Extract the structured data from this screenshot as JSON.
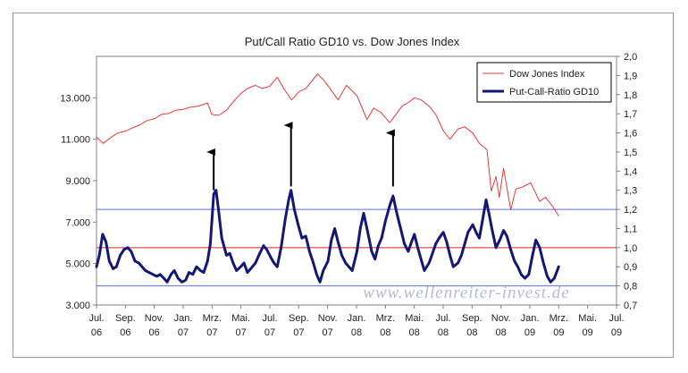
{
  "chart_data": {
    "type": "line",
    "title": "Put/Call Ratio GD10 vs. Dow Jones Index",
    "watermark": "www.wellenreiter-invest.de",
    "x_ticks": [
      [
        "Jul.",
        "06"
      ],
      [
        "Sep.",
        "06"
      ],
      [
        "Nov.",
        "06"
      ],
      [
        "Jan.",
        "07"
      ],
      [
        "Mrz.",
        "07"
      ],
      [
        "Mai.",
        "07"
      ],
      [
        "Jul.",
        "07"
      ],
      [
        "Sep.",
        "07"
      ],
      [
        "Nov.",
        "07"
      ],
      [
        "Jan.",
        "08"
      ],
      [
        "Mrz.",
        "08"
      ],
      [
        "Mai.",
        "08"
      ],
      [
        "Jul.",
        "08"
      ],
      [
        "Sep.",
        "08"
      ],
      [
        "Nov.",
        "08"
      ],
      [
        "Jan.",
        "09"
      ],
      [
        "Mrz.",
        "09"
      ],
      [
        "Mai.",
        "09"
      ],
      [
        "Jul.",
        "09"
      ]
    ],
    "x_range": [
      "2006-07-01",
      "2009-07-01"
    ],
    "y_left": {
      "ticks": [
        "3.000",
        "5.000",
        "7.000",
        "9.000",
        "11.000",
        "13.000"
      ],
      "min": 3000,
      "max": 15000
    },
    "y_right": {
      "ticks": [
        "0,7",
        "0,8",
        "0,9",
        "1,0",
        "1,1",
        "1,2",
        "1,3",
        "1,4",
        "1,5",
        "1,6",
        "1,7",
        "1,8",
        "1,9",
        "2,0"
      ],
      "min": 0.7,
      "max": 2.0
    },
    "legend": {
      "position": "top-right",
      "entries": [
        "Dow Jones Index",
        "Put-Call-Ratio GD10"
      ]
    },
    "reference_lines": [
      {
        "axis": "right",
        "value": 0.8,
        "color": "#5a6cff"
      },
      {
        "axis": "right",
        "value": 1.2,
        "color": "#5a6cff"
      },
      {
        "axis": "right",
        "value": 1.0,
        "color": "#d42020"
      }
    ],
    "arrows": [
      {
        "date": "2007-03-05",
        "from": 1.3,
        "to": 1.5
      },
      {
        "date": "2007-08-15",
        "from": 1.32,
        "to": 1.64
      },
      {
        "date": "2008-03-17",
        "from": 1.32,
        "to": 1.6
      }
    ],
    "series": [
      {
        "name": "Dow Jones Index",
        "axis": "left",
        "color": "#e83a3a",
        "points": [
          [
            "2006-07-01",
            11100
          ],
          [
            "2006-07-15",
            10800
          ],
          [
            "2006-08-01",
            11100
          ],
          [
            "2006-08-15",
            11300
          ],
          [
            "2006-09-01",
            11400
          ],
          [
            "2006-09-15",
            11550
          ],
          [
            "2006-10-01",
            11700
          ],
          [
            "2006-10-15",
            11900
          ],
          [
            "2006-11-01",
            12000
          ],
          [
            "2006-11-15",
            12200
          ],
          [
            "2006-12-01",
            12250
          ],
          [
            "2006-12-15",
            12400
          ],
          [
            "2007-01-01",
            12450
          ],
          [
            "2007-01-15",
            12550
          ],
          [
            "2007-02-01",
            12600
          ],
          [
            "2007-02-20",
            12750
          ],
          [
            "2007-03-01",
            12200
          ],
          [
            "2007-03-15",
            12150
          ],
          [
            "2007-04-01",
            12400
          ],
          [
            "2007-04-15",
            12800
          ],
          [
            "2007-05-01",
            13200
          ],
          [
            "2007-05-15",
            13450
          ],
          [
            "2007-06-01",
            13600
          ],
          [
            "2007-06-15",
            13450
          ],
          [
            "2007-07-01",
            13550
          ],
          [
            "2007-07-17",
            14000
          ],
          [
            "2007-08-01",
            13400
          ],
          [
            "2007-08-16",
            12900
          ],
          [
            "2007-09-01",
            13300
          ],
          [
            "2007-09-15",
            13450
          ],
          [
            "2007-10-01",
            13900
          ],
          [
            "2007-10-10",
            14150
          ],
          [
            "2007-10-25",
            13800
          ],
          [
            "2007-11-10",
            13300
          ],
          [
            "2007-11-22",
            12900
          ],
          [
            "2007-12-10",
            13600
          ],
          [
            "2008-01-01",
            13100
          ],
          [
            "2008-01-22",
            11950
          ],
          [
            "2008-02-05",
            12500
          ],
          [
            "2008-02-20",
            12300
          ],
          [
            "2008-03-10",
            11800
          ],
          [
            "2008-03-20",
            12100
          ],
          [
            "2008-04-05",
            12600
          ],
          [
            "2008-04-20",
            12800
          ],
          [
            "2008-05-01",
            13000
          ],
          [
            "2008-05-15",
            12900
          ],
          [
            "2008-06-01",
            12600
          ],
          [
            "2008-06-15",
            12200
          ],
          [
            "2008-07-01",
            11400
          ],
          [
            "2008-07-15",
            11000
          ],
          [
            "2008-08-01",
            11500
          ],
          [
            "2008-08-15",
            11600
          ],
          [
            "2008-09-01",
            11300
          ],
          [
            "2008-09-15",
            10800
          ],
          [
            "2008-10-01",
            10500
          ],
          [
            "2008-10-10",
            8500
          ],
          [
            "2008-10-20",
            9200
          ],
          [
            "2008-10-27",
            8200
          ],
          [
            "2008-11-05",
            9600
          ],
          [
            "2008-11-20",
            7600
          ],
          [
            "2008-12-01",
            8600
          ],
          [
            "2008-12-15",
            8700
          ],
          [
            "2009-01-01",
            8900
          ],
          [
            "2009-01-20",
            8000
          ],
          [
            "2009-02-01",
            8200
          ],
          [
            "2009-02-15",
            7800
          ],
          [
            "2009-03-01",
            7300
          ]
        ]
      },
      {
        "name": "Put-Call-Ratio GD10",
        "axis": "right",
        "color": "#131775",
        "points": [
          [
            "2006-07-01",
            0.9
          ],
          [
            "2006-07-07",
            0.96
          ],
          [
            "2006-07-14",
            1.07
          ],
          [
            "2006-07-21",
            1.03
          ],
          [
            "2006-07-28",
            0.93
          ],
          [
            "2006-08-05",
            0.89
          ],
          [
            "2006-08-12",
            0.9
          ],
          [
            "2006-08-20",
            0.96
          ],
          [
            "2006-08-28",
            0.99
          ],
          [
            "2006-09-05",
            1.0
          ],
          [
            "2006-09-12",
            0.98
          ],
          [
            "2006-09-20",
            0.93
          ],
          [
            "2006-09-28",
            0.92
          ],
          [
            "2006-10-05",
            0.9
          ],
          [
            "2006-10-12",
            0.88
          ],
          [
            "2006-10-20",
            0.87
          ],
          [
            "2006-10-28",
            0.86
          ],
          [
            "2006-11-05",
            0.85
          ],
          [
            "2006-11-12",
            0.86
          ],
          [
            "2006-11-20",
            0.84
          ],
          [
            "2006-11-27",
            0.82
          ],
          [
            "2006-12-05",
            0.86
          ],
          [
            "2006-12-12",
            0.88
          ],
          [
            "2006-12-20",
            0.84
          ],
          [
            "2006-12-28",
            0.82
          ],
          [
            "2007-01-05",
            0.83
          ],
          [
            "2007-01-12",
            0.87
          ],
          [
            "2007-01-20",
            0.86
          ],
          [
            "2007-01-28",
            0.9
          ],
          [
            "2007-02-05",
            0.88
          ],
          [
            "2007-02-12",
            0.87
          ],
          [
            "2007-02-20",
            0.93
          ],
          [
            "2007-02-26",
            1.02
          ],
          [
            "2007-03-05",
            1.28
          ],
          [
            "2007-03-10",
            1.3
          ],
          [
            "2007-03-15",
            1.2
          ],
          [
            "2007-03-22",
            1.05
          ],
          [
            "2007-04-01",
            0.96
          ],
          [
            "2007-04-08",
            0.97
          ],
          [
            "2007-04-15",
            0.92
          ],
          [
            "2007-04-22",
            0.88
          ],
          [
            "2007-05-01",
            0.9
          ],
          [
            "2007-05-08",
            0.92
          ],
          [
            "2007-05-15",
            0.87
          ],
          [
            "2007-05-22",
            0.89
          ],
          [
            "2007-06-01",
            0.92
          ],
          [
            "2007-06-10",
            0.97
          ],
          [
            "2007-06-18",
            1.01
          ],
          [
            "2007-06-25",
            0.99
          ],
          [
            "2007-07-03",
            0.95
          ],
          [
            "2007-07-10",
            0.92
          ],
          [
            "2007-07-17",
            0.9
          ],
          [
            "2007-07-25",
            1.0
          ],
          [
            "2007-08-03",
            1.15
          ],
          [
            "2007-08-10",
            1.25
          ],
          [
            "2007-08-15",
            1.3
          ],
          [
            "2007-08-22",
            1.2
          ],
          [
            "2007-08-30",
            1.12
          ],
          [
            "2007-09-07",
            1.05
          ],
          [
            "2007-09-15",
            1.06
          ],
          [
            "2007-09-23",
            0.98
          ],
          [
            "2007-10-01",
            0.92
          ],
          [
            "2007-10-08",
            0.86
          ],
          [
            "2007-10-15",
            0.82
          ],
          [
            "2007-10-22",
            0.88
          ],
          [
            "2007-11-01",
            0.93
          ],
          [
            "2007-11-08",
            1.04
          ],
          [
            "2007-11-15",
            1.1
          ],
          [
            "2007-11-22",
            1.03
          ],
          [
            "2007-11-30",
            0.96
          ],
          [
            "2007-12-08",
            0.92
          ],
          [
            "2007-12-15",
            0.9
          ],
          [
            "2007-12-22",
            0.88
          ],
          [
            "2008-01-01",
            0.98
          ],
          [
            "2008-01-08",
            1.1
          ],
          [
            "2008-01-15",
            1.18
          ],
          [
            "2008-01-22",
            1.1
          ],
          [
            "2008-02-01",
            0.98
          ],
          [
            "2008-02-08",
            0.94
          ],
          [
            "2008-02-15",
            1.01
          ],
          [
            "2008-02-22",
            1.05
          ],
          [
            "2008-03-01",
            1.14
          ],
          [
            "2008-03-10",
            1.22
          ],
          [
            "2008-03-17",
            1.27
          ],
          [
            "2008-03-25",
            1.18
          ],
          [
            "2008-04-02",
            1.1
          ],
          [
            "2008-04-10",
            1.02
          ],
          [
            "2008-04-18",
            0.98
          ],
          [
            "2008-04-25",
            1.03
          ],
          [
            "2008-05-01",
            1.07
          ],
          [
            "2008-05-08",
            1.0
          ],
          [
            "2008-05-15",
            0.94
          ],
          [
            "2008-05-22",
            0.88
          ],
          [
            "2008-06-01",
            0.92
          ],
          [
            "2008-06-08",
            0.97
          ],
          [
            "2008-06-15",
            1.02
          ],
          [
            "2008-06-22",
            1.05
          ],
          [
            "2008-07-01",
            1.08
          ],
          [
            "2008-07-08",
            1.03
          ],
          [
            "2008-07-15",
            0.96
          ],
          [
            "2008-07-22",
            0.9
          ],
          [
            "2008-08-01",
            0.92
          ],
          [
            "2008-08-08",
            0.96
          ],
          [
            "2008-08-15",
            1.02
          ],
          [
            "2008-08-22",
            1.08
          ],
          [
            "2008-09-01",
            1.12
          ],
          [
            "2008-09-08",
            1.08
          ],
          [
            "2008-09-15",
            1.05
          ],
          [
            "2008-09-22",
            1.15
          ],
          [
            "2008-09-29",
            1.25
          ],
          [
            "2008-10-05",
            1.18
          ],
          [
            "2008-10-12",
            1.09
          ],
          [
            "2008-10-20",
            1.0
          ],
          [
            "2008-10-28",
            1.04
          ],
          [
            "2008-11-05",
            1.09
          ],
          [
            "2008-11-12",
            1.06
          ],
          [
            "2008-11-20",
            0.99
          ],
          [
            "2008-11-28",
            0.93
          ],
          [
            "2008-12-05",
            0.9
          ],
          [
            "2008-12-12",
            0.86
          ],
          [
            "2008-12-20",
            0.84
          ],
          [
            "2008-12-28",
            0.86
          ],
          [
            "2009-01-05",
            0.96
          ],
          [
            "2009-01-12",
            1.04
          ],
          [
            "2009-01-20",
            1.0
          ],
          [
            "2009-01-28",
            0.92
          ],
          [
            "2009-02-05",
            0.85
          ],
          [
            "2009-02-12",
            0.82
          ],
          [
            "2009-02-20",
            0.84
          ],
          [
            "2009-03-01",
            0.9
          ]
        ]
      }
    ]
  }
}
